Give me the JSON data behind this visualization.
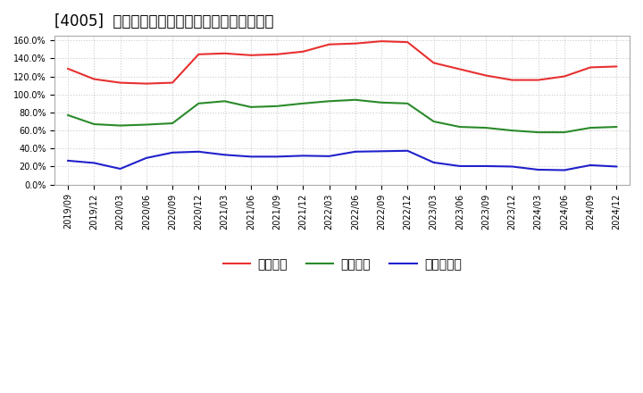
{
  "title": "[4005]  流動比率、当座比率、現預金比率の推移",
  "x_labels": [
    "2019/09",
    "2019/12",
    "2020/03",
    "2020/06",
    "2020/09",
    "2020/12",
    "2021/03",
    "2021/06",
    "2021/09",
    "2021/12",
    "2022/03",
    "2022/06",
    "2022/09",
    "2022/12",
    "2023/03",
    "2023/06",
    "2023/09",
    "2023/12",
    "2024/03",
    "2024/06",
    "2024/09",
    "2024/12"
  ],
  "ryudo": [
    128.5,
    117.0,
    113.0,
    112.0,
    113.0,
    144.5,
    145.5,
    143.5,
    144.5,
    147.5,
    155.5,
    156.5,
    159.0,
    158.0,
    135.0,
    128.0,
    121.0,
    116.0,
    116.0,
    120.0,
    130.0,
    131.0
  ],
  "toza": [
    77.0,
    67.0,
    65.5,
    66.5,
    68.0,
    90.0,
    92.5,
    86.0,
    87.0,
    90.0,
    92.5,
    94.0,
    91.0,
    90.0,
    70.0,
    64.0,
    63.0,
    60.0,
    58.0,
    58.0,
    63.0,
    64.0
  ],
  "genyo": [
    26.5,
    24.0,
    17.5,
    29.5,
    35.5,
    36.5,
    33.0,
    31.0,
    31.0,
    32.0,
    31.5,
    36.5,
    37.0,
    37.5,
    24.5,
    20.5,
    20.5,
    20.0,
    16.5,
    16.0,
    21.5,
    20.0
  ],
  "ryudo_color": "#e83030",
  "toza_color": "#2a8a2a",
  "genyo_color": "#2020cc",
  "ylim": [
    0,
    165
  ],
  "yticks": [
    0,
    20,
    40,
    60,
    80,
    100,
    120,
    140,
    160
  ],
  "ytick_labels": [
    "0.0%",
    "20.0%",
    "40.0%",
    "60.0%",
    "80.0%",
    "100.0%",
    "120.0%",
    "140.0%",
    "160.0%"
  ],
  "legend_labels": [
    "流動比率",
    "当座比率",
    "現預金比率"
  ],
  "background_color": "#ffffff",
  "grid_color": "#cccccc",
  "title_fontsize": 12,
  "tick_fontsize": 7,
  "legend_fontsize": 10
}
